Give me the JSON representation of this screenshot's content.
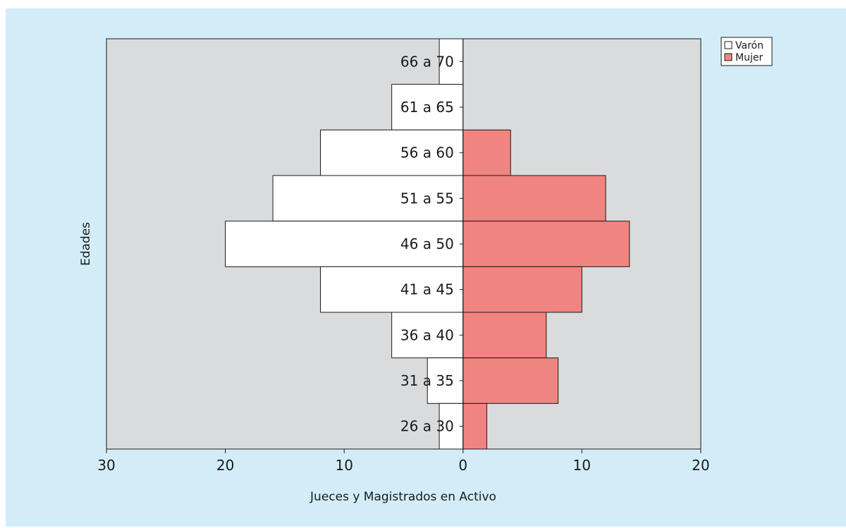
{
  "chart_data": {
    "type": "bar",
    "orientation": "horizontal",
    "layout": "population-pyramid",
    "xlabel": "Jueces y Magistrados en Activo",
    "ylabel": "Edades",
    "categories": [
      "66 a 70",
      "61 a 65",
      "56 a 60",
      "51 a 55",
      "46 a 50",
      "41 a 45",
      "36 a 40",
      "31 a 35",
      "26 a 30"
    ],
    "x_ticks": [
      "30",
      "20",
      "10",
      "0",
      "10",
      "20"
    ],
    "xlim_left": 30,
    "xlim_right": 20,
    "series": [
      {
        "name": "Varón",
        "side": "left",
        "color": "#ffffff",
        "values": [
          2,
          6,
          12,
          16,
          20,
          12,
          6,
          3,
          2
        ]
      },
      {
        "name": "Mujer",
        "side": "right",
        "color": "#f08480",
        "values": [
          0,
          0,
          4,
          12,
          14,
          10,
          7,
          8,
          2
        ]
      }
    ],
    "legend_position": "top-right",
    "plot_background": "#dadbdd",
    "page_background": "#d3edf8",
    "grid": false
  }
}
